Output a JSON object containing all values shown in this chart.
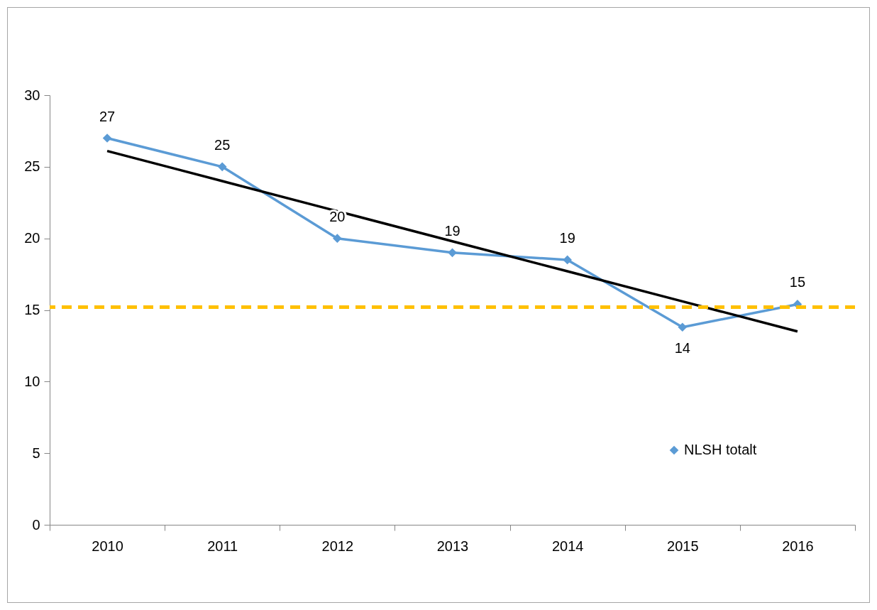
{
  "chart_data": {
    "type": "line",
    "categories": [
      "2010",
      "2011",
      "2012",
      "2013",
      "2014",
      "2015",
      "2016"
    ],
    "ylim": [
      0,
      30
    ],
    "yticks": [
      0,
      5,
      10,
      15,
      20,
      25,
      30
    ],
    "marker": "diamond",
    "legend": "bottom right",
    "grid": false,
    "series": [
      {
        "name": "NLSH totalt",
        "color": "#5b9bd5",
        "values": [
          27,
          25,
          20,
          19,
          18.5,
          13.8,
          15.4
        ],
        "value_labels": [
          "27",
          "25",
          "20",
          "19",
          "19",
          "14",
          "15"
        ]
      },
      {
        "color": "#000000",
        "marker": "none",
        "values": [
          26.1,
          24.0,
          21.9,
          19.8,
          17.7,
          15.6,
          13.5
        ]
      }
    ],
    "ref_lines": [
      {
        "axis": "y",
        "value": 15.2,
        "color": "#ffc000",
        "line_style": "dashed"
      }
    ]
  }
}
